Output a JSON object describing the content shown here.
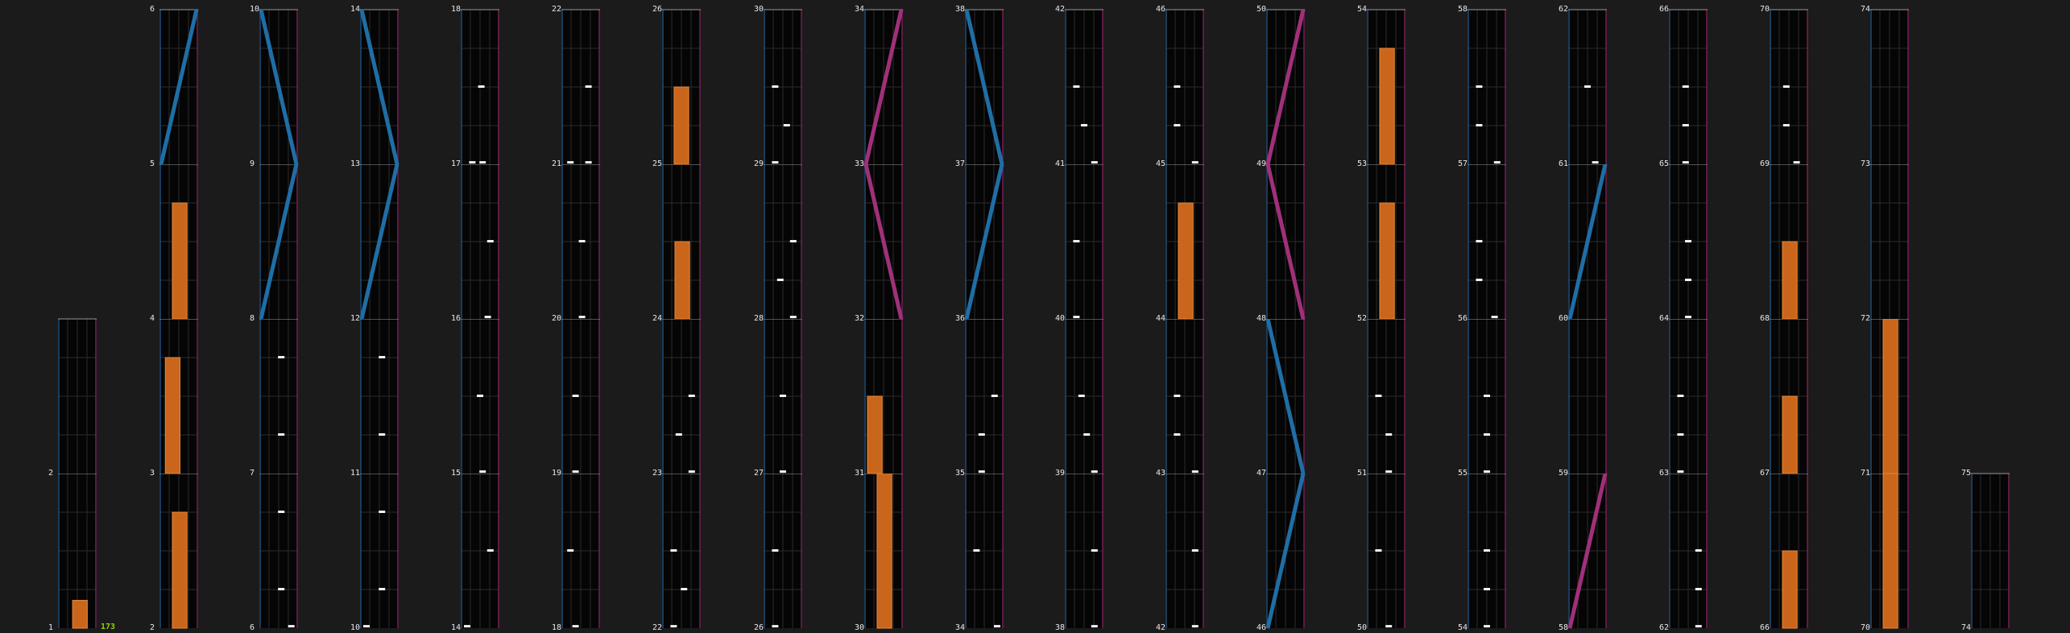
{
  "colors": {
    "background": "#1b1b1b",
    "cell": "#050505",
    "left_border": "#1f4f78",
    "right_border": "#7a2258",
    "bar": "#c9661c",
    "blue_line": "#1f6ea6",
    "magenta_line": "#a0307a",
    "counter": "#8fd400"
  },
  "counter_label": "173",
  "columns": [
    {
      "labels": [
        "1",
        "2"
      ],
      "cells": [
        {
          "bar": 0.18,
          "bar_pos": 0.65
        },
        {
          "dashes": []
        }
      ]
    },
    {
      "labels": [
        "2",
        "3",
        "4",
        "5",
        "6"
      ],
      "cells": [
        {
          "bar": 0.75
        },
        {
          "bar": 0.75,
          "bar_pos": 0.15
        },
        {
          "bar": 0.75
        },
        {
          "line": [
            0,
            1
          ],
          "color": "blue"
        }
      ]
    },
    {
      "labels": [
        "6",
        "7",
        "8",
        "9",
        "10"
      ],
      "cells": [
        {
          "dashes": [
            [
              0.6,
              0.25
            ],
            [
              0.6,
              0.75
            ],
            [
              0.99,
              0.99
            ]
          ]
        },
        {
          "dashes": [
            [
              0.6,
              0.25
            ],
            [
              0.6,
              0.75
            ]
          ]
        },
        {
          "line": [
            0,
            1
          ],
          "color": "blue"
        },
        {
          "line": [
            1,
            0
          ],
          "color": "blue"
        }
      ]
    },
    {
      "labels": [
        "10",
        "11",
        "12",
        "13",
        "14"
      ],
      "cells": [
        {
          "dashes": [
            [
              0.6,
              0.25
            ],
            [
              0.6,
              0.75
            ],
            [
              0.0,
              0.99
            ]
          ]
        },
        {
          "dashes": [
            [
              0.6,
              0.25
            ],
            [
              0.6,
              0.75
            ]
          ]
        },
        {
          "line": [
            0,
            1
          ],
          "color": "blue"
        },
        {
          "line": [
            1,
            0
          ],
          "color": "blue"
        }
      ]
    },
    {
      "labels": [
        "14",
        "15",
        "16",
        "17",
        "18"
      ],
      "cells": [
        {
          "dashes": [
            [
              0.9,
              0.5
            ],
            [
              0.0,
              0.99
            ]
          ]
        },
        {
          "dashes": [
            [
              0.5,
              0.5
            ],
            [
              0.6,
              0.99
            ]
          ]
        },
        {
          "dashes": [
            [
              0.9,
              0.5
            ],
            [
              0.8,
              0.99
            ]
          ]
        },
        {
          "dashes": [
            [
              0.55,
              0.5
            ],
            [
              0.6,
              0.99
            ],
            [
              0.2,
              0.99
            ]
          ]
        }
      ]
    },
    {
      "labels": [
        "18",
        "19",
        "20",
        "21",
        "22"
      ],
      "cells": [
        {
          "dashes": [
            [
              0.1,
              0.5
            ],
            [
              0.3,
              0.99
            ]
          ]
        },
        {
          "dashes": [
            [
              0.3,
              0.5
            ],
            [
              0.3,
              0.99
            ]
          ]
        },
        {
          "dashes": [
            [
              0.55,
              0.5
            ],
            [
              0.55,
              0.99
            ]
          ]
        },
        {
          "dashes": [
            [
              0.8,
              0.5
            ],
            [
              0.8,
              0.99
            ],
            [
              0.1,
              0.99
            ]
          ]
        }
      ]
    },
    {
      "labels": [
        "22",
        "23",
        "24",
        "25",
        "26"
      ],
      "cells": [
        {
          "dashes": [
            [
              0.2,
              0.5
            ],
            [
              0.6,
              0.75
            ],
            [
              0.2,
              0.99
            ]
          ]
        },
        {
          "dashes": [
            [
              0.9,
              0.5
            ],
            [
              0.4,
              0.75
            ],
            [
              0.9,
              0.99
            ]
          ]
        },
        {
          "bar": 0.5
        },
        {
          "bar": 0.5,
          "bar_pos": 0.5
        }
      ]
    },
    {
      "labels": [
        "26",
        "27",
        "28",
        "29",
        "30"
      ],
      "cells": [
        {
          "dashes": [
            [
              0.2,
              0.5
            ],
            [
              0.2,
              0.99
            ]
          ]
        },
        {
          "dashes": [
            [
              0.5,
              0.5
            ],
            [
              0.5,
              0.99
            ]
          ]
        },
        {
          "dashes": [
            [
              0.9,
              0.5
            ],
            [
              0.4,
              0.75
            ],
            [
              0.9,
              0.99
            ]
          ]
        },
        {
          "dashes": [
            [
              0.2,
              0.5
            ],
            [
              0.65,
              0.75
            ],
            [
              0.2,
              0.99
            ]
          ]
        }
      ]
    },
    {
      "labels": [
        "30",
        "31",
        "32",
        "33",
        "34"
      ],
      "cells": [
        {
          "bar": 1.0
        },
        {
          "bar": 0.5,
          "bar_pos": 0.0
        },
        {
          "line": [
            1,
            0
          ],
          "color": "magenta"
        },
        {
          "line": [
            0,
            1
          ],
          "color": "magenta"
        }
      ]
    },
    {
      "labels": [
        "34",
        "35",
        "36",
        "37",
        "38"
      ],
      "cells": [
        {
          "dashes": [
            [
              0.2,
              0.5
            ],
            [
              1.0,
              0.99
            ]
          ]
        },
        {
          "dashes": [
            [
              0.9,
              0.5
            ],
            [
              0.4,
              0.75
            ],
            [
              0.4,
              0.99
            ]
          ]
        },
        {
          "line": [
            0,
            1
          ],
          "color": "blue"
        },
        {
          "line": [
            1,
            0
          ],
          "color": "blue"
        }
      ]
    },
    {
      "labels": [
        "38",
        "39",
        "40",
        "41",
        "42"
      ],
      "cells": [
        {
          "dashes": [
            [
              0.9,
              0.5
            ],
            [
              0.9,
              0.99
            ]
          ]
        },
        {
          "dashes": [
            [
              0.4,
              0.5
            ],
            [
              0.6,
              0.75
            ],
            [
              0.9,
              0.99
            ]
          ]
        },
        {
          "dashes": [
            [
              0.2,
              0.5
            ],
            [
              0.2,
              0.99
            ]
          ]
        },
        {
          "dashes": [
            [
              0.2,
              0.5
            ],
            [
              0.5,
              0.75
            ],
            [
              0.9,
              0.99
            ]
          ]
        }
      ]
    },
    {
      "labels": [
        "42",
        "43",
        "44",
        "45",
        "46"
      ],
      "cells": [
        {
          "dashes": [
            [
              0.9,
              0.5
            ],
            [
              0.9,
              0.99
            ]
          ]
        },
        {
          "dashes": [
            [
              0.2,
              0.5
            ],
            [
              0.2,
              0.75
            ],
            [
              0.9,
              0.99
            ]
          ]
        },
        {
          "bar": 0.75
        },
        {
          "dashes": [
            [
              0.2,
              0.5
            ],
            [
              0.2,
              0.75
            ],
            [
              0.9,
              0.99
            ]
          ]
        }
      ]
    },
    {
      "labels": [
        "46",
        "47",
        "48",
        "49",
        "50"
      ],
      "cells": [
        {
          "line": [
            0,
            1
          ],
          "color": "blue"
        },
        {
          "line": [
            1,
            0
          ],
          "color": "blue"
        },
        {
          "line": [
            1,
            0
          ],
          "color": "magenta"
        },
        {
          "line": [
            0,
            1
          ],
          "color": "magenta"
        }
      ]
    },
    {
      "labels": [
        "50",
        "51",
        "52",
        "53",
        "54"
      ],
      "cells": [
        {
          "dashes": [
            [
              0.2,
              0.5
            ],
            [
              0.6,
              0.99
            ]
          ]
        },
        {
          "dashes": [
            [
              0.2,
              0.5
            ],
            [
              0.6,
              0.75
            ],
            [
              0.6,
              0.99
            ]
          ]
        },
        {
          "bar": 0.75
        },
        {
          "bar": 0.75
        }
      ]
    },
    {
      "labels": [
        "54",
        "55",
        "56",
        "57",
        "58"
      ],
      "cells": [
        {
          "dashes": [
            [
              0.5,
              0.5
            ],
            [
              0.5,
              0.75
            ],
            [
              0.5,
              0.99
            ]
          ]
        },
        {
          "dashes": [
            [
              0.5,
              0.5
            ],
            [
              0.5,
              0.75
            ],
            [
              0.5,
              0.99
            ]
          ]
        },
        {
          "dashes": [
            [
              0.2,
              0.5
            ],
            [
              0.2,
              0.75
            ],
            [
              0.8,
              0.99
            ]
          ]
        },
        {
          "dashes": [
            [
              0.2,
              0.5
            ],
            [
              0.2,
              0.75
            ],
            [
              0.9,
              0.99
            ]
          ]
        }
      ]
    },
    {
      "labels": [
        "58",
        "59",
        "60",
        "61",
        "62"
      ],
      "cells": [
        {
          "line": [
            0,
            1
          ],
          "color": "magenta"
        },
        {
          "dashes": []
        },
        {
          "line": [
            0,
            1
          ],
          "color": "blue"
        },
        {
          "dashes": [
            [
              0.5,
              0.5
            ],
            [
              0.8,
              0.99
            ]
          ]
        }
      ]
    },
    {
      "labels": [
        "62",
        "63",
        "64",
        "65",
        "66"
      ],
      "cells": [
        {
          "dashes": [
            [
              0.9,
              0.5
            ],
            [
              0.9,
              0.75
            ],
            [
              0.9,
              0.99
            ]
          ]
        },
        {
          "dashes": [
            [
              0.2,
              0.5
            ],
            [
              0.2,
              0.75
            ],
            [
              0.2,
              0.99
            ]
          ]
        },
        {
          "dashes": [
            [
              0.5,
              0.5
            ],
            [
              0.5,
              0.75
            ],
            [
              0.5,
              0.99
            ]
          ]
        },
        {
          "dashes": [
            [
              0.4,
              0.5
            ],
            [
              0.4,
              0.75
            ],
            [
              0.4,
              0.99
            ]
          ]
        }
      ]
    },
    {
      "labels": [
        "66",
        "67",
        "68",
        "69",
        "70"
      ],
      "cells": [
        {
          "bar": 0.5
        },
        {
          "bar": 0.5
        },
        {
          "bar": 0.5
        },
        {
          "dashes": [
            [
              0.4,
              0.5
            ],
            [
              0.4,
              0.75
            ],
            [
              0.8,
              0.99
            ]
          ]
        }
      ]
    },
    {
      "labels": [
        "70",
        "71",
        "72",
        "73",
        "74"
      ],
      "cells": [
        {
          "bar": 1.0
        },
        {
          "bar": 1.0
        },
        {
          "dashes": []
        },
        {
          "dashes": []
        }
      ]
    },
    {
      "labels": [
        "74",
        "75"
      ],
      "cells": [
        {
          "dashes": []
        }
      ]
    }
  ]
}
